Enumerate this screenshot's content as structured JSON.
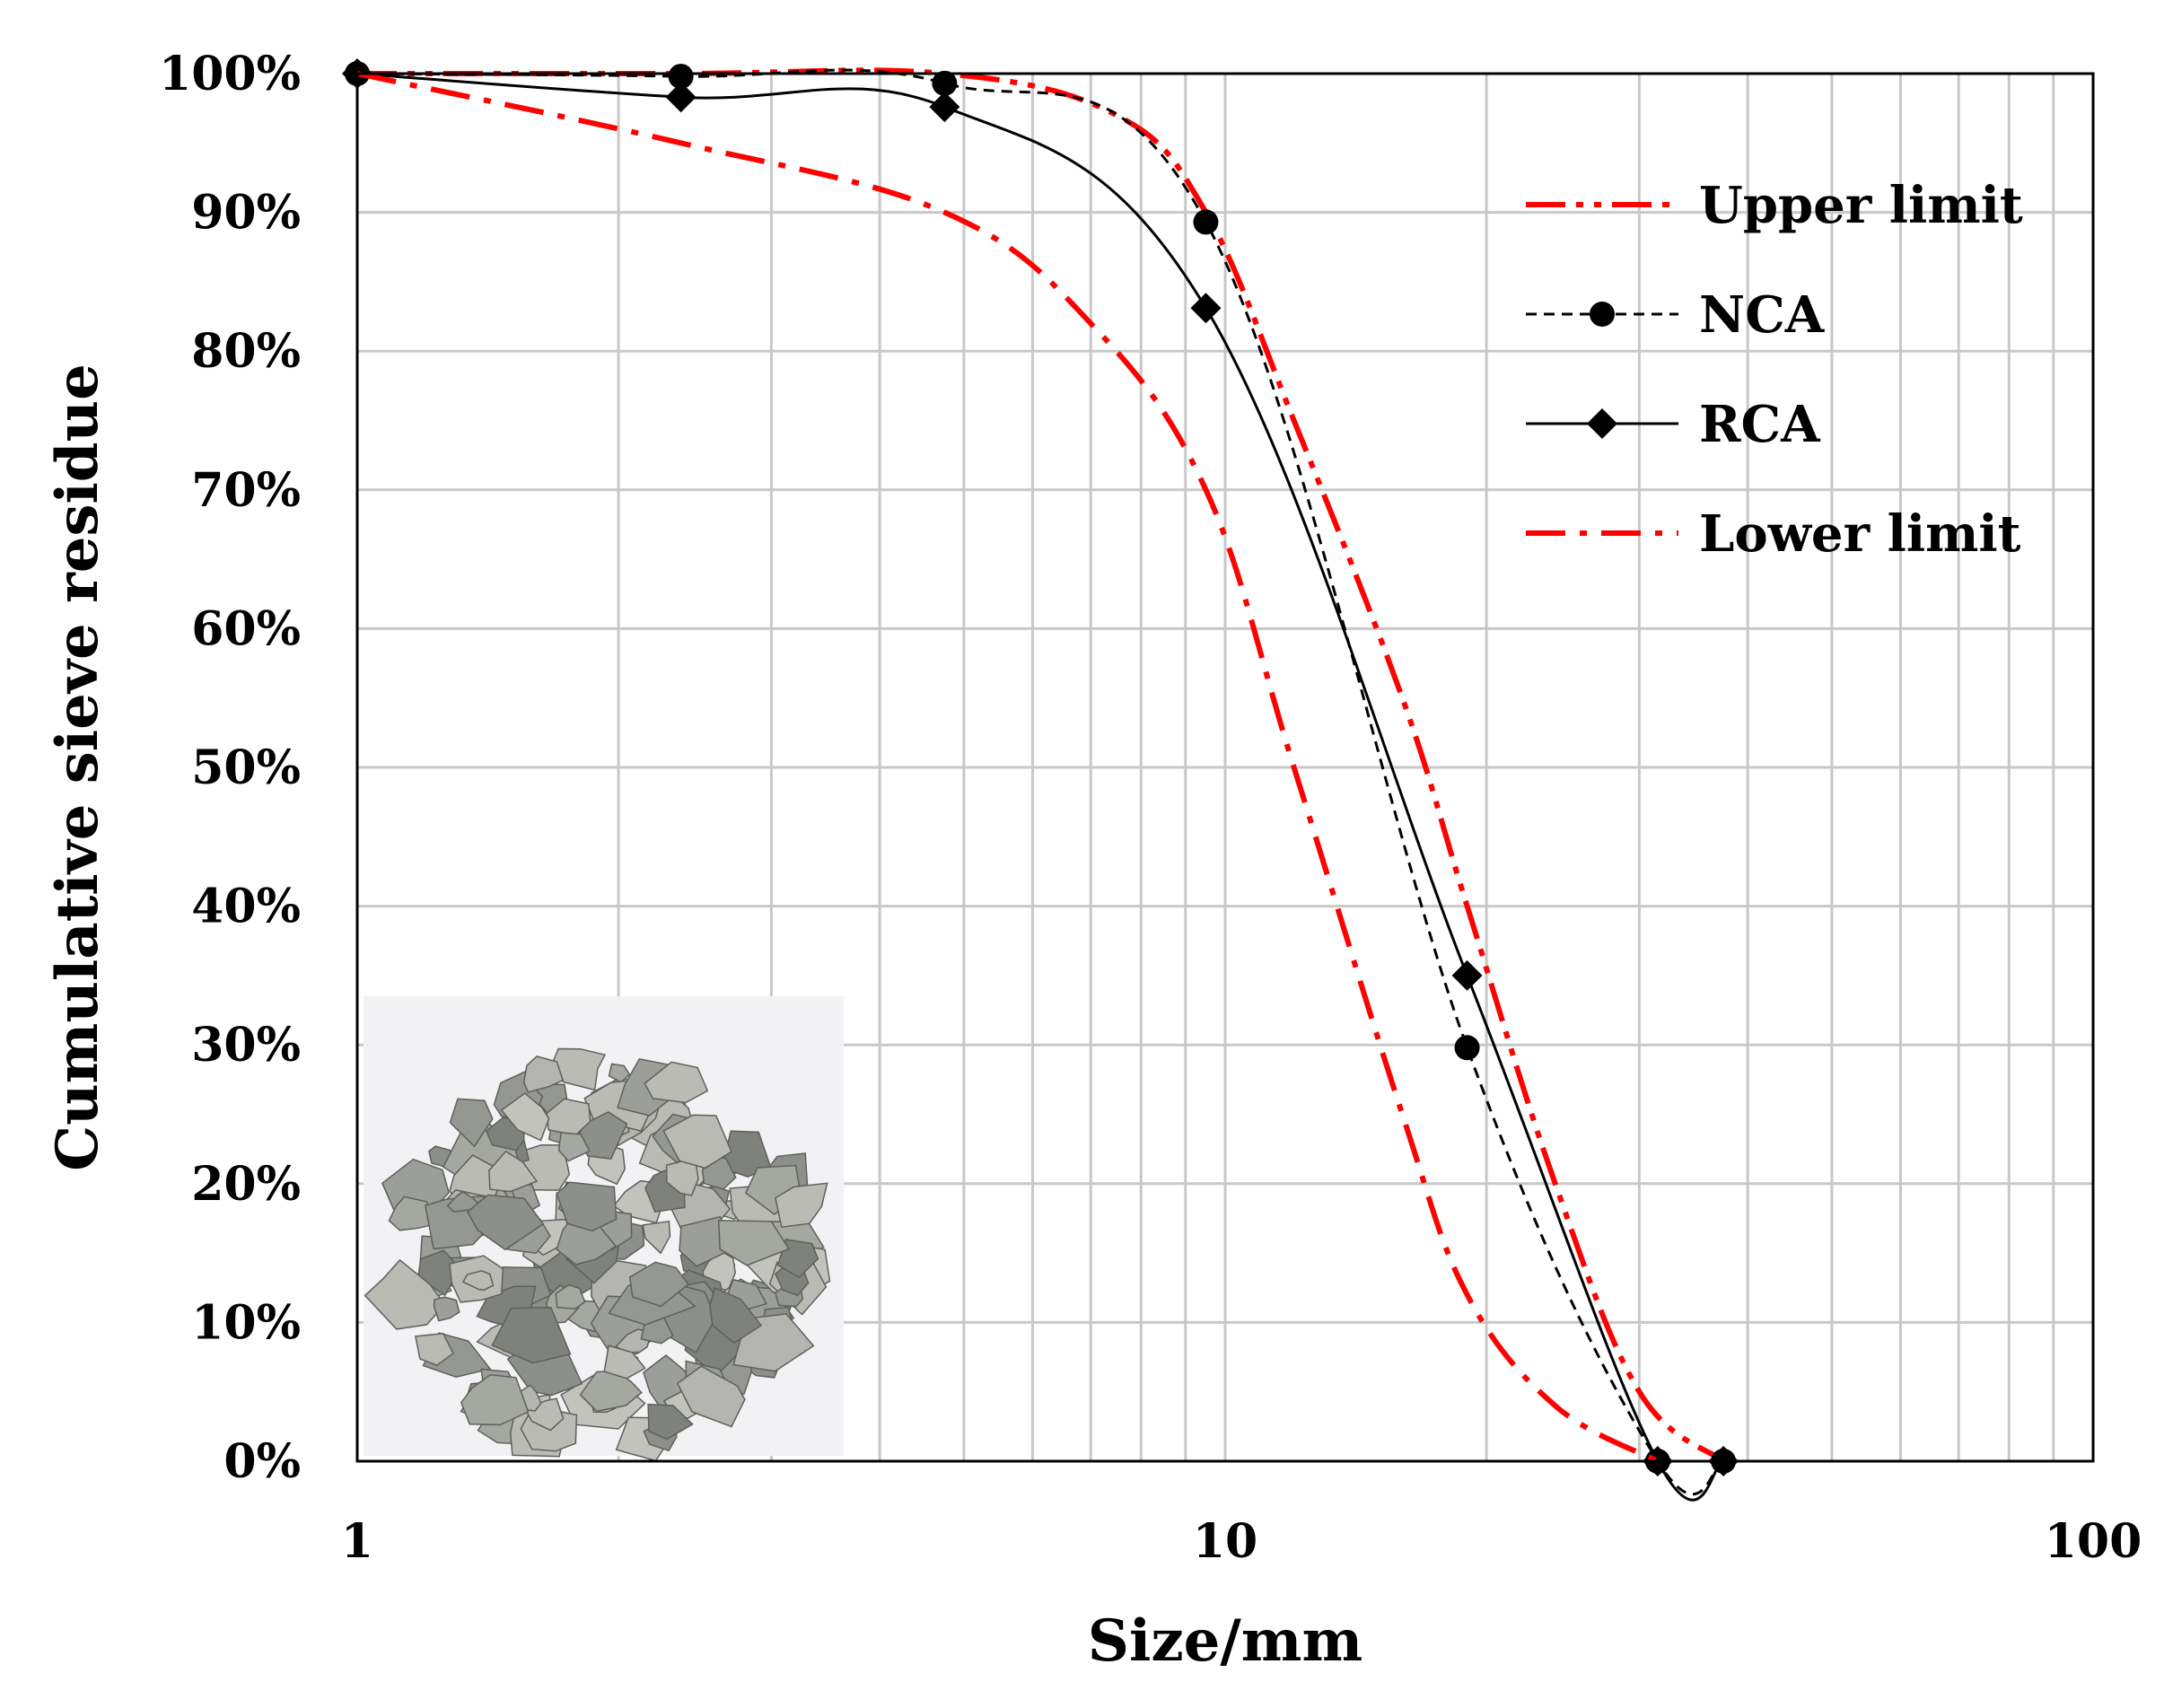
{
  "chart_data": {
    "type": "line",
    "xlabel": "Size/mm",
    "ylabel": "Cumulative sieve residue",
    "x_scale": "log",
    "xlim": [
      1,
      100
    ],
    "ylim": [
      0,
      100
    ],
    "x_ticks": [
      "1",
      "10",
      "100"
    ],
    "x_tick_values": [
      1,
      10,
      100
    ],
    "y_ticks": [
      "0%",
      "10%",
      "20%",
      "30%",
      "40%",
      "50%",
      "60%",
      "70%",
      "80%",
      "90%",
      "100%"
    ],
    "y_tick_values": [
      0,
      10,
      20,
      30,
      40,
      50,
      60,
      70,
      80,
      90,
      100
    ],
    "grid": true,
    "legend_position": "top-right",
    "series": [
      {
        "name": "Upper limit",
        "color": "#ff0000",
        "style": "dash-dot-dot",
        "marker": "none",
        "x": [
          1,
          2.36,
          4.75,
          7.5,
          9.5,
          12,
          16,
          19,
          24,
          30,
          37.5
        ],
        "y": [
          100,
          100,
          100,
          97,
          90,
          75,
          55,
          40,
          20,
          5,
          0
        ]
      },
      {
        "name": "NCA",
        "color": "#000000",
        "style": "dashed",
        "marker": "circle",
        "x": [
          1,
          2.36,
          4.75,
          9.5,
          19,
          31.5,
          37.5
        ],
        "y": [
          100,
          99.8,
          99.3,
          89.3,
          29.8,
          0,
          0
        ]
      },
      {
        "name": "RCA",
        "color": "#000000",
        "style": "solid",
        "marker": "diamond",
        "x": [
          1,
          2.36,
          4.75,
          9.5,
          19,
          31.5,
          37.5
        ],
        "y": [
          100,
          98.3,
          97.6,
          83.1,
          35,
          0,
          0
        ]
      },
      {
        "name": "Lower limit",
        "color": "#ff0000",
        "style": "dash-dot",
        "marker": "none",
        "x": [
          1,
          2.36,
          4.75,
          7,
          9.5,
          12,
          16,
          19,
          24,
          31.5
        ],
        "y": [
          100,
          95,
          90,
          82,
          70,
          50,
          25,
          12,
          4,
          0
        ]
      }
    ]
  },
  "inset": {
    "subject": "aggregate-photo",
    "bg_color": "#f2f2f4",
    "stone_color": "#a8aaa4"
  }
}
